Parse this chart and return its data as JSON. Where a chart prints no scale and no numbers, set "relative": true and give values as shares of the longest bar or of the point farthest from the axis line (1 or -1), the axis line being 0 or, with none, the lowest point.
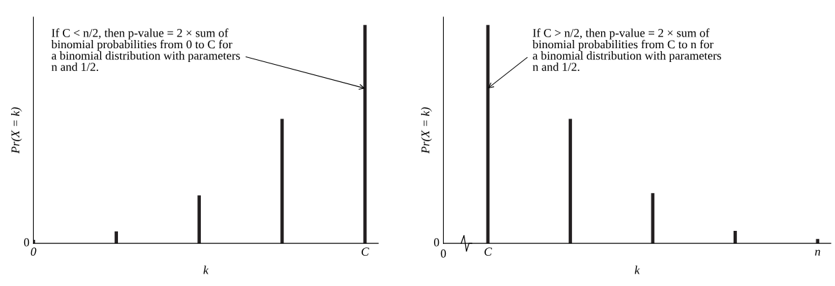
{
  "chart_data": [
    {
      "type": "bar",
      "relative": true,
      "categories": [
        "0",
        null,
        null,
        null,
        "C"
      ],
      "values": [
        0.016,
        0.055,
        0.22,
        0.57,
        1
      ],
      "color": "#231f20",
      "xlabel": "k",
      "ylabel": "Pr(X = k)",
      "tick_labels": "x",
      "annotations": [
        "0",
        {
          "text": "If C < n/2, then p-value = 2 × sum of\nbinomial probabilities from 0 to C for\na binomial distribution with parameters\nn and 1/2.",
          "x": "C",
          "y": 0.71
        }
      ]
    },
    {
      "type": "bar",
      "relative": true,
      "categories": [
        "C",
        null,
        null,
        null,
        "n"
      ],
      "values": [
        1,
        0.57,
        0.23,
        0.057,
        0.02
      ],
      "color": "#231f20",
      "xlabel": "k",
      "ylabel": "Pr(X = k)",
      "tick_labels": "x",
      "annotations": [
        "0",
        "0",
        {
          "text": "If C > n/2, then p-value = 2 × sum of\nbinomial probabilities from C to n for\na binomial distribution with parameters\nn and 1/2.",
          "x": "C",
          "y": 0.71
        }
      ]
    }
  ]
}
